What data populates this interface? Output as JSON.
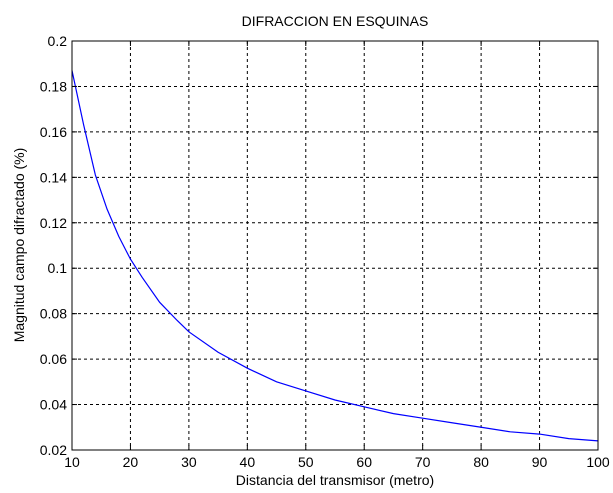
{
  "chart_data": {
    "type": "line",
    "title": "DIFRACCION EN ESQUINAS",
    "xlabel": "Distancia del transmisor (metro)",
    "ylabel": "Magnitud campo difractado (%)",
    "xlim": [
      10,
      100
    ],
    "ylim": [
      0.02,
      0.2
    ],
    "xticks": [
      10,
      20,
      30,
      40,
      50,
      60,
      70,
      80,
      90,
      100
    ],
    "xtick_labels": [
      "10",
      "20",
      "30",
      "40",
      "50",
      "60",
      "70",
      "80",
      "90",
      "100"
    ],
    "yticks": [
      0.02,
      0.04,
      0.06,
      0.08,
      0.1,
      0.12,
      0.14,
      0.16,
      0.18,
      0.2
    ],
    "ytick_labels": [
      "0.02",
      "0.04",
      "0.06",
      "0.08",
      "0.1",
      "0.12",
      "0.14",
      "0.16",
      "0.18",
      "0.2"
    ],
    "grid": true,
    "grid_style": "dashed",
    "series": [
      {
        "color": "#0000ff",
        "x": [
          10,
          12,
          14,
          16,
          18,
          20,
          22,
          25,
          28,
          30,
          35,
          40,
          45,
          50,
          55,
          60,
          65,
          70,
          75,
          80,
          85,
          90,
          95,
          100
        ],
        "y": [
          0.187,
          0.163,
          0.141,
          0.126,
          0.114,
          0.104,
          0.096,
          0.085,
          0.077,
          0.072,
          0.063,
          0.056,
          0.05,
          0.046,
          0.042,
          0.039,
          0.036,
          0.034,
          0.032,
          0.03,
          0.028,
          0.027,
          0.025,
          0.024
        ]
      }
    ]
  }
}
